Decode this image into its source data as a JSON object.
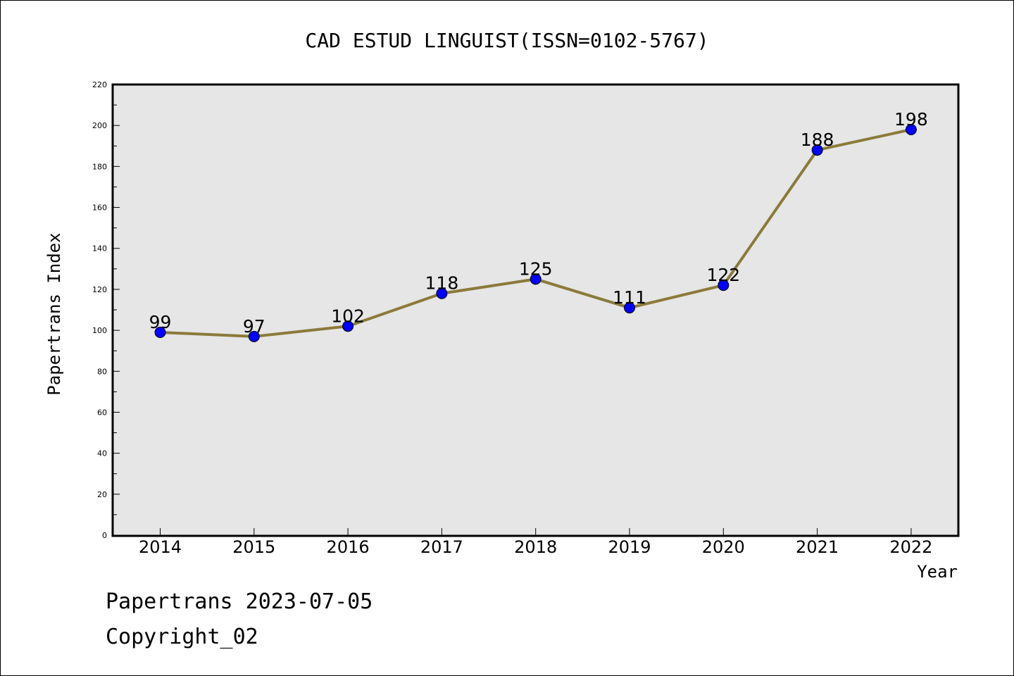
{
  "chart_data": {
    "type": "line",
    "title": "CAD ESTUD LINGUIST(ISSN=0102-5767)",
    "xlabel": "Year",
    "ylabel": "Papertrans Index",
    "categories": [
      "2014",
      "2015",
      "2016",
      "2017",
      "2018",
      "2019",
      "2020",
      "2021",
      "2022"
    ],
    "series": [
      {
        "values": [
          99,
          97,
          102,
          118,
          125,
          111,
          122,
          188,
          198
        ]
      }
    ],
    "ylim": [
      0,
      220
    ],
    "yticks": [
      0,
      20,
      40,
      60,
      80,
      100,
      120,
      140,
      160,
      180,
      200,
      220
    ],
    "grid": false,
    "data_labels": true,
    "colors": {
      "line": "#8b7a3a",
      "marker": "#0000ff",
      "plot_bg": "#e6e6e6"
    }
  },
  "footer": {
    "line1": "Papertrans 2023-07-05",
    "line2": "Copyright_02"
  }
}
